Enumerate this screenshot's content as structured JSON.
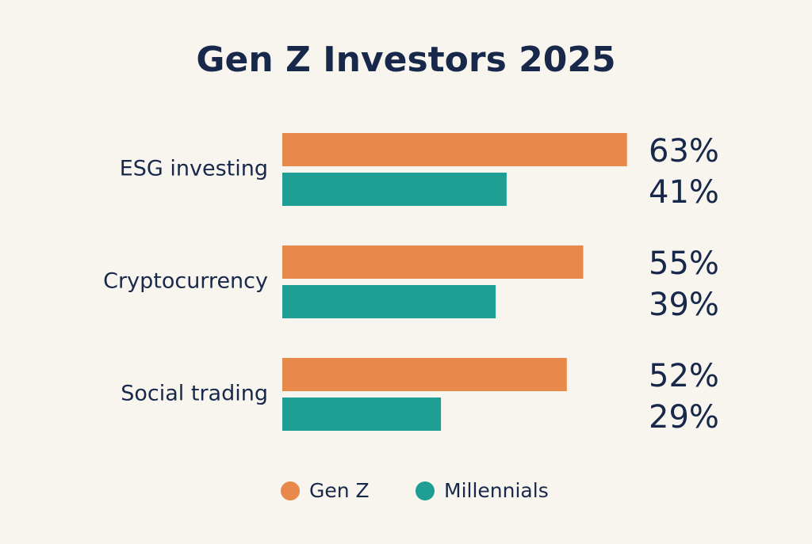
{
  "chart_data": {
    "type": "bar",
    "orientation": "horizontal",
    "title": "Gen Z Investors 2025",
    "categories": [
      "ESG investing",
      "Cryptocurrency",
      "Social trading"
    ],
    "series": [
      {
        "name": "Gen Z",
        "color": "#e8884a",
        "values": [
          63,
          55,
          52
        ],
        "value_labels": [
          "63%",
          "55%",
          "52%"
        ]
      },
      {
        "name": "Millennials",
        "color": "#1f9e93",
        "values": [
          41,
          39,
          29
        ],
        "value_labels": [
          "41%",
          "39%",
          "29%"
        ]
      }
    ]
  }
}
